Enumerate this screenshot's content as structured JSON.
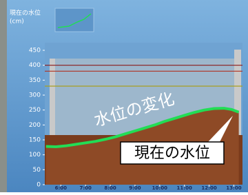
{
  "chart_data": {
    "type": "line",
    "title": "現在の水位",
    "unit": "(cm)",
    "annotation": "水位の変化",
    "callout": "現在の水位",
    "series": [
      {
        "color": "#22dd55",
        "x": [
          5.4,
          5.8,
          6.2,
          6.6,
          7.0,
          7.4,
          7.8,
          8.2,
          8.6,
          9.0,
          9.4,
          9.8,
          10.2,
          10.6,
          11.0,
          11.4,
          11.8,
          12.2,
          12.6,
          12.9,
          13.2
        ],
        "values": [
          128,
          127,
          130,
          135,
          140,
          145,
          152,
          160,
          170,
          180,
          190,
          200,
          212,
          222,
          232,
          242,
          250,
          255,
          256,
          252,
          243
        ]
      }
    ],
    "reference_lines": [
      {
        "value": 400,
        "color": "#8b1a1a"
      },
      {
        "value": 380,
        "color": "#b03020"
      },
      {
        "value": 330,
        "color": "#a8a020"
      }
    ],
    "xlim": [
      5.35,
      13.35
    ],
    "xticks": [
      {
        "value": 6,
        "label": "6:00"
      },
      {
        "value": 7,
        "label": "7:00"
      },
      {
        "value": 8,
        "label": "8:00"
      },
      {
        "value": 9,
        "label": "9:00"
      },
      {
        "value": 10,
        "label": "10:00"
      },
      {
        "value": 11,
        "label": "11:00"
      },
      {
        "value": 12,
        "label": "12:00"
      },
      {
        "value": 13,
        "label": "13:00"
      }
    ],
    "ylim": [
      0,
      450
    ],
    "yticks": [
      0,
      50,
      100,
      150,
      200,
      250,
      300,
      350,
      400,
      450
    ]
  }
}
